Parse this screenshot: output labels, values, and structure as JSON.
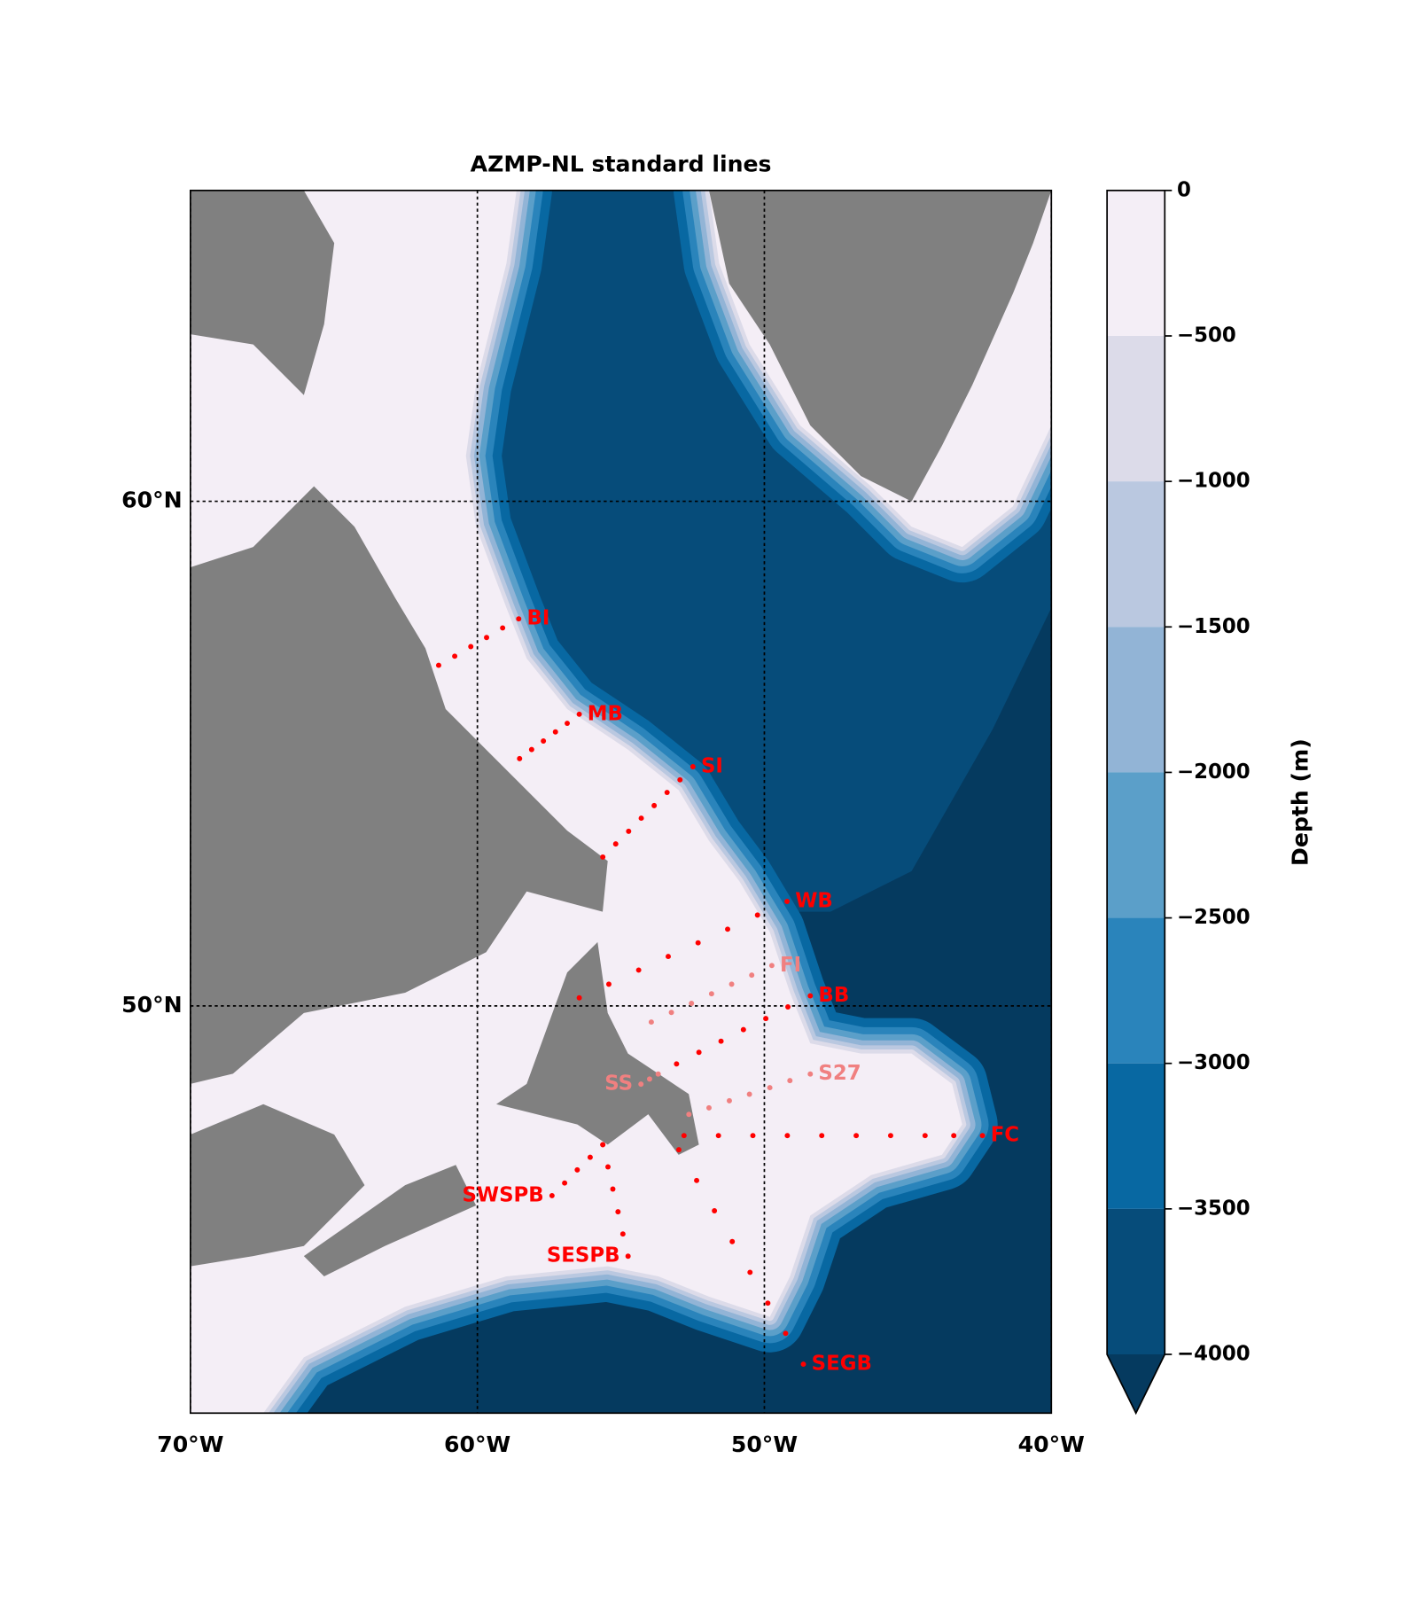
{
  "chart_data": {
    "type": "map",
    "title": "AZMP-NL standard lines",
    "xlim": [
      -70,
      -40
    ],
    "ylim": [
      41.93,
      66.16
    ],
    "xticks": [
      {
        "value": -70,
        "label": "70°W"
      },
      {
        "value": -60,
        "label": "60°W"
      },
      {
        "value": -50,
        "label": "50°W"
      },
      {
        "value": -40,
        "label": "40°W"
      }
    ],
    "yticks": [
      {
        "value": 50,
        "label": "50°N"
      },
      {
        "value": 60,
        "label": "60°N"
      }
    ],
    "grid": true,
    "colorbar": {
      "label": "Depth (m)",
      "ticks": [
        {
          "value": 0,
          "label": "0"
        },
        {
          "value": -500,
          "label": "−500"
        },
        {
          "value": -1000,
          "label": "−1000"
        },
        {
          "value": -1500,
          "label": "−1500"
        },
        {
          "value": -2000,
          "label": "−2000"
        },
        {
          "value": -2500,
          "label": "−2500"
        },
        {
          "value": -3000,
          "label": "−3000"
        },
        {
          "value": -3500,
          "label": "−3500"
        },
        {
          "value": -4000,
          "label": "−4000"
        }
      ],
      "colors": [
        "#f4eef6",
        "#dcdbe9",
        "#bac8e0",
        "#92b4d6",
        "#5b9fc9",
        "#2a84bb",
        "#0868a2",
        "#064c7a"
      ],
      "extend_color": "#053a5f"
    },
    "series": [
      {
        "name": "BI",
        "color": "#ff0000",
        "x": [
          -61.35,
          -60.79,
          -60.23,
          -59.68,
          -59.12,
          -58.56
        ],
        "y": [
          56.75,
          56.93,
          57.12,
          57.3,
          57.49,
          57.67
        ]
      },
      {
        "name": "MB",
        "color": "#ff0000",
        "x": [
          -58.53,
          -58.11,
          -57.7,
          -57.28,
          -56.87,
          -56.45
        ],
        "y": [
          54.9,
          55.08,
          55.25,
          55.43,
          55.6,
          55.78
        ]
      },
      {
        "name": "SI",
        "color": "#ff0000",
        "x": [
          -55.63,
          -55.18,
          -54.73,
          -54.29,
          -53.84,
          -53.39,
          -52.94,
          -52.49
        ],
        "y": [
          52.95,
          53.21,
          53.46,
          53.72,
          53.97,
          54.23,
          54.48,
          54.74
        ]
      },
      {
        "name": "WB",
        "color": "#ff0000",
        "x": [
          -56.45,
          -55.42,
          -54.38,
          -53.35,
          -52.31,
          -51.28,
          -50.24,
          -49.21
        ],
        "y": [
          50.16,
          50.43,
          50.71,
          50.98,
          51.25,
          51.52,
          51.8,
          52.07
        ]
      },
      {
        "name": "FI",
        "color": "#f08080",
        "x": [
          -53.94,
          -53.24,
          -52.54,
          -51.84,
          -51.14,
          -50.44,
          -49.74
        ],
        "y": [
          49.68,
          49.87,
          50.05,
          50.24,
          50.43,
          50.61,
          50.8
        ]
      },
      {
        "name": "BB",
        "color": "#ff0000",
        "x": [
          -53.06,
          -52.28,
          -51.51,
          -50.73,
          -49.95,
          -49.18,
          -48.4
        ],
        "y": [
          48.85,
          49.08,
          49.3,
          49.53,
          49.75,
          49.98,
          50.2
        ]
      },
      {
        "name": "S27",
        "color": "#f08080",
        "x": [
          -52.63,
          -51.93,
          -51.22,
          -50.52,
          -49.81,
          -49.11,
          -48.4
        ],
        "y": [
          47.85,
          47.98,
          48.12,
          48.25,
          48.38,
          48.52,
          48.65
        ]
      },
      {
        "name": "SS",
        "color": "#f08080",
        "x": [
          -54.3,
          -54.0,
          -53.7
        ],
        "y": [
          48.45,
          48.55,
          48.65
        ]
      },
      {
        "name": "FC",
        "color": "#ff0000",
        "x": [
          -52.8,
          -51.6,
          -50.4,
          -49.2,
          -48.0,
          -46.8,
          -45.6,
          -44.4,
          -43.4,
          -42.4
        ],
        "y": [
          47.43,
          47.43,
          47.43,
          47.43,
          47.43,
          47.43,
          47.43,
          47.43,
          47.43,
          47.43
        ]
      },
      {
        "name": "SWSPB",
        "color": "#ff0000",
        "x": [
          -57.4,
          -56.96,
          -56.52,
          -56.07,
          -55.63
        ],
        "y": [
          46.24,
          46.49,
          46.75,
          47.0,
          47.25
        ]
      },
      {
        "name": "SESPB",
        "color": "#ff0000",
        "x": [
          -55.63,
          -55.45,
          -55.28,
          -55.1,
          -54.93,
          -54.75
        ],
        "y": [
          47.25,
          46.81,
          46.37,
          45.92,
          45.48,
          45.04
        ]
      },
      {
        "name": "SEGB",
        "color": "#ff0000",
        "x": [
          -52.98,
          -52.36,
          -51.74,
          -51.12,
          -50.5,
          -49.88,
          -49.26,
          -48.64
        ],
        "y": [
          47.15,
          46.54,
          45.94,
          45.33,
          44.72,
          44.11,
          43.51,
          42.9
        ]
      }
    ]
  }
}
